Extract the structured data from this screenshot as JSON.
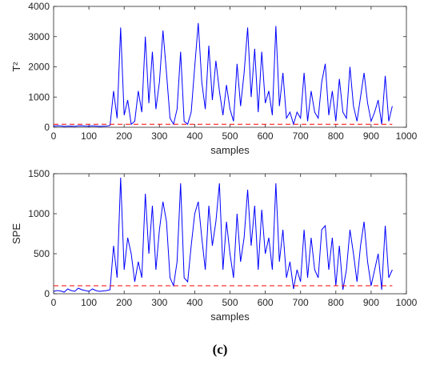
{
  "chart_data": [
    {
      "type": "line",
      "xlabel": "samples",
      "ylabel": "T²",
      "x": [
        0,
        10,
        20,
        30,
        40,
        50,
        60,
        70,
        80,
        90,
        100,
        110,
        120,
        130,
        140,
        150,
        160,
        170,
        180,
        190,
        200,
        210,
        220,
        230,
        240,
        250,
        260,
        270,
        280,
        290,
        300,
        310,
        320,
        330,
        340,
        350,
        360,
        370,
        380,
        390,
        400,
        410,
        420,
        430,
        440,
        450,
        460,
        470,
        480,
        490,
        500,
        510,
        520,
        530,
        540,
        550,
        560,
        570,
        580,
        590,
        600,
        610,
        620,
        630,
        640,
        650,
        660,
        670,
        680,
        690,
        700,
        710,
        720,
        730,
        740,
        750,
        760,
        770,
        780,
        790,
        800,
        810,
        820,
        830,
        840,
        850,
        860,
        870,
        880,
        890,
        900,
        910,
        920,
        930,
        940,
        950,
        960
      ],
      "series": [
        {
          "color": "#0000ff",
          "values": [
            40,
            50,
            45,
            30,
            35,
            40,
            30,
            45,
            50,
            40,
            35,
            45,
            40,
            30,
            35,
            40,
            60,
            1200,
            300,
            3300,
            400,
            900,
            100,
            200,
            1200,
            500,
            3000,
            800,
            2500,
            600,
            1500,
            3200,
            1800,
            300,
            100,
            600,
            2500,
            200,
            100,
            500,
            2000,
            3450,
            1500,
            600,
            2700,
            900,
            2200,
            1200,
            400,
            1400,
            600,
            200,
            2100,
            700,
            1800,
            3300,
            1000,
            2600,
            500,
            2500,
            800,
            1200,
            400,
            3350,
            700,
            1800,
            300,
            500,
            100,
            500,
            300,
            1800,
            200,
            1200,
            500,
            300,
            1500,
            2100,
            400,
            1200,
            200,
            1600,
            500,
            300,
            2000,
            700,
            200,
            1000,
            1800,
            800,
            200,
            500,
            900,
            100,
            1700,
            200,
            700
          ]
        }
      ],
      "threshold": {
        "value": 100,
        "color": "#ff0000"
      },
      "xlim": [
        0,
        1000
      ],
      "xticks": [
        0,
        100,
        200,
        300,
        400,
        500,
        600,
        700,
        800,
        900,
        1000
      ],
      "ylim": [
        0,
        4000
      ],
      "yticks": [
        0,
        1000,
        2000,
        3000,
        4000
      ]
    },
    {
      "type": "line",
      "xlabel": "samples",
      "ylabel": "SPE",
      "x": [
        0,
        10,
        20,
        30,
        40,
        50,
        60,
        70,
        80,
        90,
        100,
        110,
        120,
        130,
        140,
        150,
        160,
        170,
        180,
        190,
        200,
        210,
        220,
        230,
        240,
        250,
        260,
        270,
        280,
        290,
        300,
        310,
        320,
        330,
        340,
        350,
        360,
        370,
        380,
        390,
        400,
        410,
        420,
        430,
        440,
        450,
        460,
        470,
        480,
        490,
        500,
        510,
        520,
        530,
        540,
        550,
        560,
        570,
        580,
        590,
        600,
        610,
        620,
        630,
        640,
        650,
        660,
        670,
        680,
        690,
        700,
        710,
        720,
        730,
        740,
        750,
        760,
        770,
        780,
        790,
        800,
        810,
        820,
        830,
        840,
        850,
        860,
        870,
        880,
        890,
        900,
        910,
        920,
        930,
        940,
        950,
        960
      ],
      "series": [
        {
          "color": "#0000ff",
          "values": [
            30,
            40,
            35,
            20,
            60,
            40,
            30,
            70,
            50,
            40,
            30,
            60,
            40,
            30,
            35,
            40,
            50,
            600,
            200,
            1450,
            300,
            700,
            500,
            150,
            400,
            200,
            1250,
            500,
            1100,
            300,
            800,
            1150,
            900,
            200,
            100,
            400,
            1380,
            200,
            150,
            600,
            1000,
            1150,
            700,
            300,
            1100,
            600,
            900,
            1380,
            300,
            900,
            500,
            200,
            1000,
            400,
            700,
            1300,
            600,
            1100,
            300,
            1050,
            500,
            700,
            300,
            1380,
            400,
            800,
            200,
            400,
            60,
            300,
            150,
            800,
            200,
            700,
            300,
            200,
            800,
            850,
            300,
            700,
            100,
            600,
            50,
            300,
            800,
            500,
            150,
            600,
            900,
            400,
            100,
            300,
            500,
            50,
            850,
            200,
            300
          ]
        }
      ],
      "threshold": {
        "value": 100,
        "color": "#ff0000"
      },
      "xlim": [
        0,
        1000
      ],
      "xticks": [
        0,
        100,
        200,
        300,
        400,
        500,
        600,
        700,
        800,
        900,
        1000
      ],
      "ylim": [
        0,
        1500
      ],
      "yticks": [
        0,
        500,
        1000,
        1500
      ]
    }
  ],
  "caption": "(c)"
}
